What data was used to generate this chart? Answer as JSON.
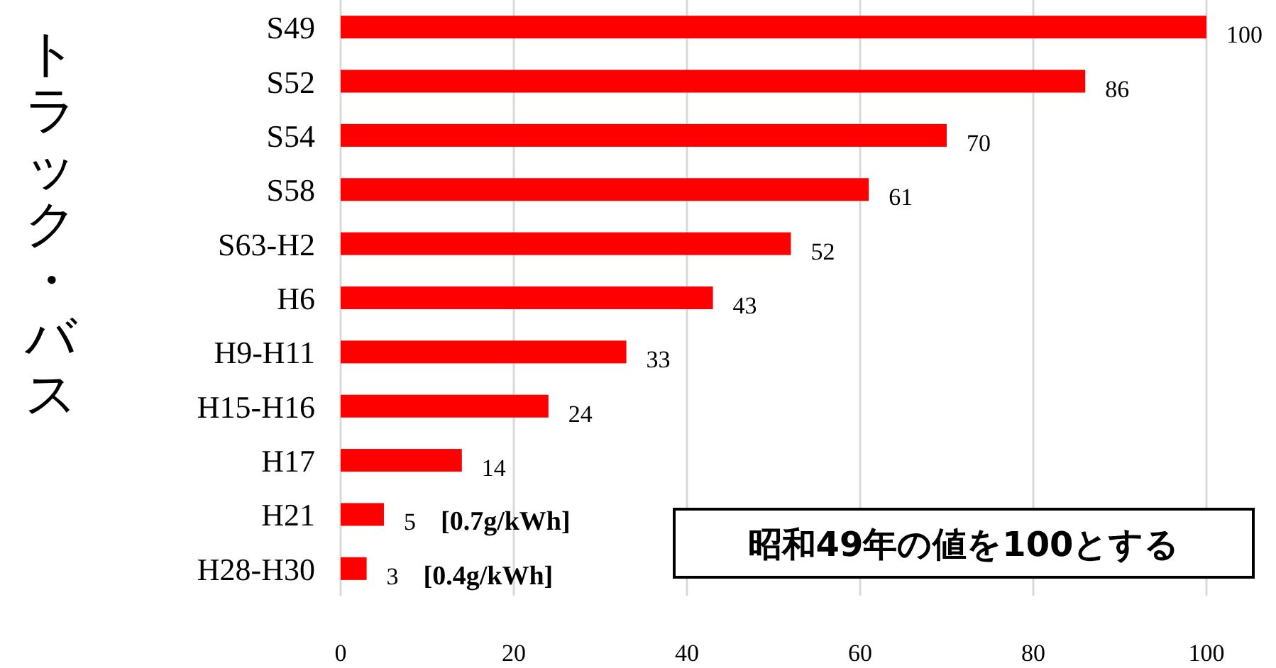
{
  "chart_data": {
    "type": "bar",
    "orientation": "horizontal",
    "ylabel": "トラック・バス",
    "categories": [
      "S49",
      "S52",
      "S54",
      "S58",
      "S63-H2",
      "H6",
      "H9-H11",
      "H15-H16",
      "H17",
      "H21",
      "H28-H30"
    ],
    "values": [
      100,
      86,
      70,
      61,
      52,
      43,
      33,
      24,
      14,
      5,
      3
    ],
    "color": "#ff0000",
    "xlim": [
      0,
      100
    ],
    "xticks": [
      0,
      20,
      40,
      60,
      80,
      100
    ],
    "grid": "x",
    "data_labels": true,
    "annotations": [
      "[0.7g/kWh]",
      "[0.4g/kWh]",
      "昭和49年の値を100とする"
    ]
  }
}
